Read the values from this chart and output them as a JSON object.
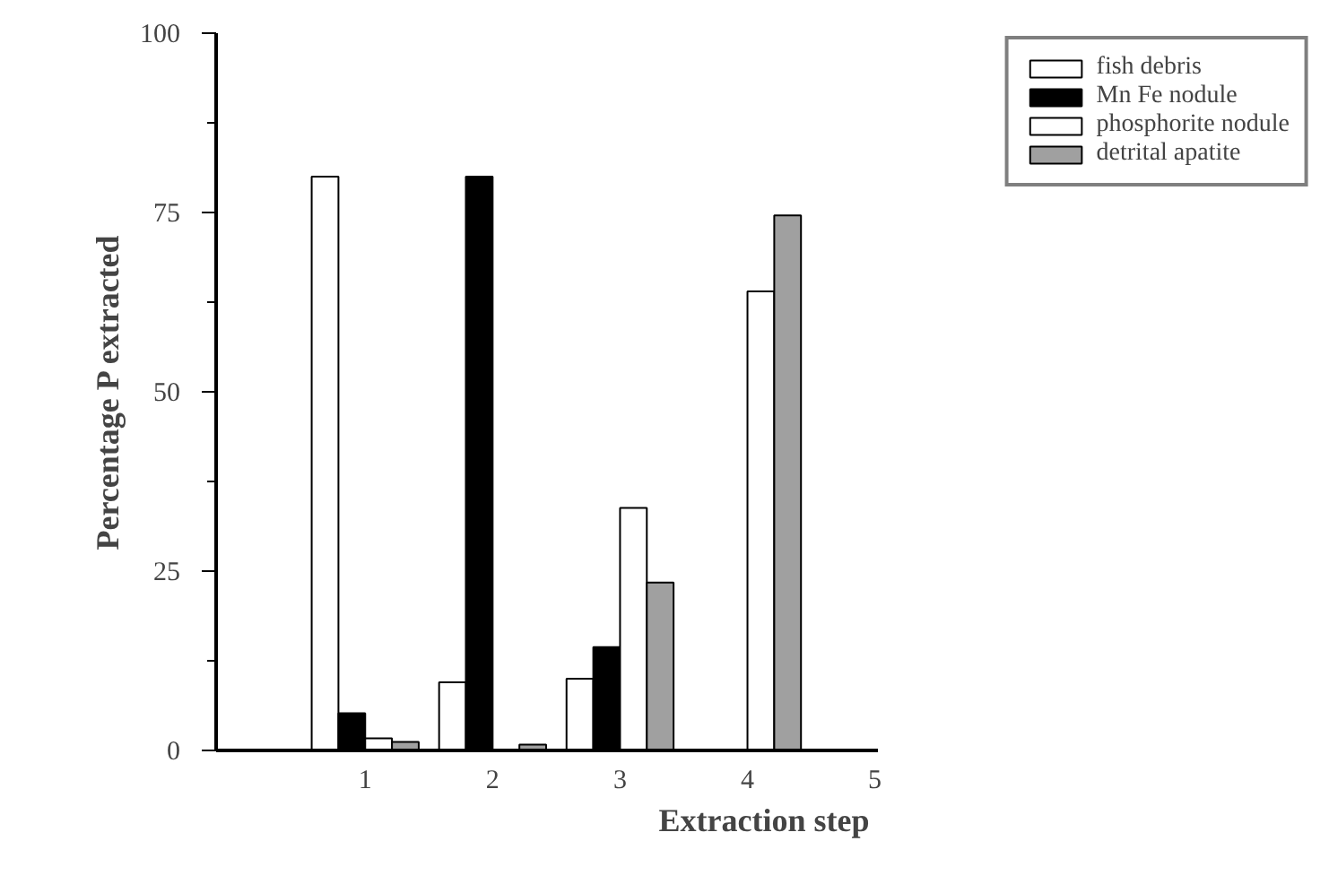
{
  "chart_data": {
    "type": "bar",
    "xlabel": "Extraction step",
    "ylabel": "Percentage P extracted",
    "categories": [
      "1",
      "2",
      "3",
      "4",
      "5"
    ],
    "series": [
      {
        "name": "fish debris",
        "color": "#ffffff",
        "values": [
          80,
          9.5,
          10,
          null,
          null
        ]
      },
      {
        "name": "Mn Fe nodule",
        "color": "#000000",
        "values": [
          5.2,
          80,
          14.4,
          null,
          null
        ]
      },
      {
        "name": "phosphorite nodule",
        "color": "#ffffff",
        "values": [
          1.7,
          null,
          33.8,
          64,
          null
        ]
      },
      {
        "name": "detrital apatite",
        "color": "#a0a0a0",
        "values": [
          1.2,
          0.8,
          23.4,
          74.6,
          null
        ]
      }
    ],
    "ylim": [
      0,
      100
    ],
    "yticks": [
      0,
      25,
      50,
      75,
      100
    ],
    "legend": "top right"
  }
}
